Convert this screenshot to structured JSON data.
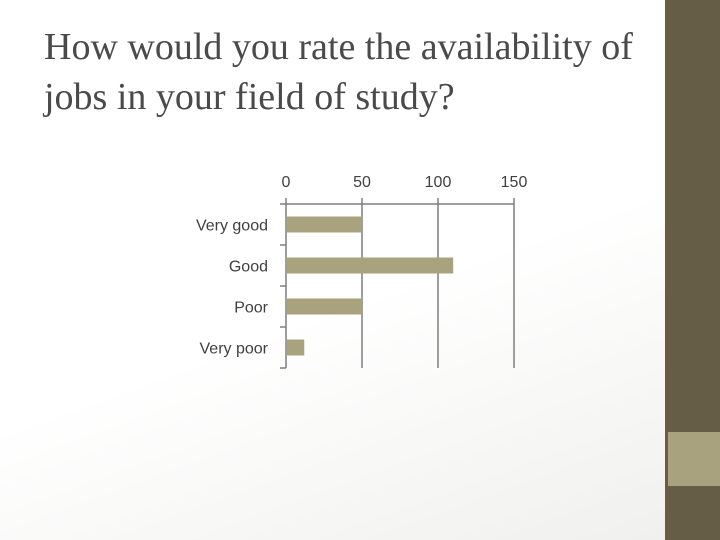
{
  "slide": {
    "title": "How would you rate the availability of jobs in your field of study?"
  },
  "colors": {
    "sidebar": "#655d45",
    "sidebar_accent": "#a8a37e",
    "bar": "#a8a37e",
    "axis": "#7f7f7f"
  },
  "chart_data": {
    "type": "bar",
    "orientation": "horizontal",
    "categories": [
      "Very good",
      "Good",
      "Poor",
      "Very poor"
    ],
    "values": [
      50,
      110,
      50,
      12
    ],
    "xlim": [
      0,
      150
    ],
    "xticks": [
      "0",
      "50",
      "100",
      "150"
    ],
    "x_axis_position": "top",
    "grid": true,
    "legend": "none"
  }
}
